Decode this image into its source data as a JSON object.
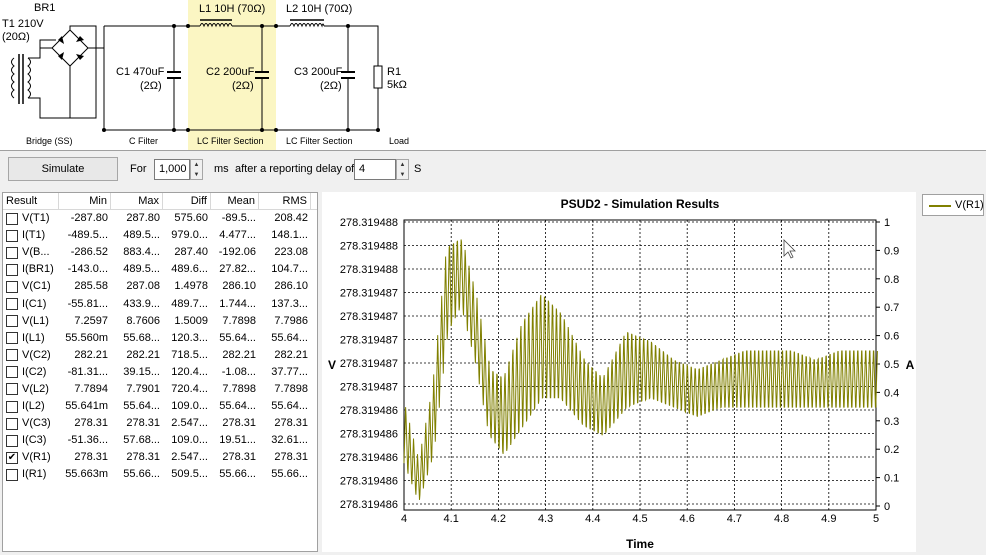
{
  "schematic": {
    "transformer": {
      "name": "T1 210V",
      "res": "(20Ω)"
    },
    "bridge": {
      "name": "BR1",
      "section": "Bridge (SS)"
    },
    "c1": {
      "name": "C1 470uF",
      "res": "(2Ω)",
      "section": "C Filter"
    },
    "l1": {
      "name": "L1 10H (70Ω)"
    },
    "c2": {
      "name": "C2 200uF",
      "res": "(2Ω)",
      "section": "LC Filter Section"
    },
    "l2": {
      "name": "L2 10H (70Ω)"
    },
    "c3": {
      "name": "C3 200uF",
      "res": "(2Ω)",
      "section": "LC Filter Section"
    },
    "r1": {
      "name": "R1",
      "value": "5kΩ",
      "section": "Load"
    }
  },
  "controls": {
    "simulate_label": "Simulate",
    "for_label": "For",
    "duration_value": "1,000",
    "ms_label": "ms",
    "delay_label": "after a reporting delay of",
    "delay_value": "4",
    "s_label": "S"
  },
  "results": {
    "columns": [
      "Result",
      "Min",
      "Max",
      "Diff",
      "Mean",
      "RMS"
    ],
    "rows": [
      {
        "name": "V(T1)",
        "checked": false,
        "min": "-287.80",
        "max": "287.80",
        "diff": "575.60",
        "mean": "-89.5...",
        "rms": "208.42"
      },
      {
        "name": "I(T1)",
        "checked": false,
        "min": "-489.5...",
        "max": "489.5...",
        "diff": "979.0...",
        "mean": "4.477...",
        "rms": "148.1..."
      },
      {
        "name": "V(B...",
        "checked": false,
        "min": "-286.52",
        "max": "883.4...",
        "diff": "287.40",
        "mean": "-192.06",
        "rms": "223.08"
      },
      {
        "name": "I(BR1)",
        "checked": false,
        "min": "-143.0...",
        "max": "489.5...",
        "diff": "489.6...",
        "mean": "27.82...",
        "rms": "104.7..."
      },
      {
        "name": "V(C1)",
        "checked": false,
        "min": "285.58",
        "max": "287.08",
        "diff": "1.4978",
        "mean": "286.10",
        "rms": "286.10"
      },
      {
        "name": "I(C1)",
        "checked": false,
        "min": "-55.81...",
        "max": "433.9...",
        "diff": "489.7...",
        "mean": "1.744...",
        "rms": "137.3..."
      },
      {
        "name": "V(L1)",
        "checked": false,
        "min": "7.2597",
        "max": "8.7606",
        "diff": "1.5009",
        "mean": "7.7898",
        "rms": "7.7986"
      },
      {
        "name": "I(L1)",
        "checked": false,
        "min": "55.560m",
        "max": "55.68...",
        "diff": "120.3...",
        "mean": "55.64...",
        "rms": "55.64..."
      },
      {
        "name": "V(C2)",
        "checked": false,
        "min": "282.21",
        "max": "282.21",
        "diff": "718.5...",
        "mean": "282.21",
        "rms": "282.21"
      },
      {
        "name": "I(C2)",
        "checked": false,
        "min": "-81.31...",
        "max": "39.15...",
        "diff": "120.4...",
        "mean": "-1.08...",
        "rms": "37.77..."
      },
      {
        "name": "V(L2)",
        "checked": false,
        "min": "7.7894",
        "max": "7.7901",
        "diff": "720.4...",
        "mean": "7.7898",
        "rms": "7.7898"
      },
      {
        "name": "I(L2)",
        "checked": false,
        "min": "55.641m",
        "max": "55.64...",
        "diff": "109.0...",
        "mean": "55.64...",
        "rms": "55.64..."
      },
      {
        "name": "V(C3)",
        "checked": false,
        "min": "278.31",
        "max": "278.31",
        "diff": "2.547...",
        "mean": "278.31",
        "rms": "278.31"
      },
      {
        "name": "I(C3)",
        "checked": false,
        "min": "-51.36...",
        "max": "57.68...",
        "diff": "109.0...",
        "mean": "19.51...",
        "rms": "32.61..."
      },
      {
        "name": "V(R1)",
        "checked": true,
        "min": "278.31",
        "max": "278.31",
        "diff": "2.547...",
        "mean": "278.31",
        "rms": "278.31"
      },
      {
        "name": "I(R1)",
        "checked": false,
        "min": "55.663m",
        "max": "55.66...",
        "diff": "509.5...",
        "mean": "55.66...",
        "rms": "55.66..."
      }
    ]
  },
  "chart_data": {
    "type": "line",
    "title": "PSUD2 - Simulation Results",
    "xlabel": "Time",
    "ylabel": "V",
    "y2label": "A",
    "xlim": [
      4,
      5
    ],
    "x_ticks": [
      "4",
      "4.1",
      "4.2",
      "4.3",
      "4.4",
      "4.5",
      "4.6",
      "4.7",
      "4.8",
      "4.9",
      "5"
    ],
    "y_ticks": [
      "278.319488",
      "278.319488",
      "278.319488",
      "278.319487",
      "278.319487",
      "278.319487",
      "278.319487",
      "278.319487",
      "278.319486",
      "278.319486",
      "278.319486",
      "278.319486",
      "278.319486"
    ],
    "y2_ticks": [
      "1",
      "0.9",
      "0.8",
      "0.7",
      "0.6",
      "0.5",
      "0.4",
      "0.3",
      "0.2",
      "0.1",
      "0"
    ],
    "grid": true,
    "legend_position": "right",
    "series": [
      {
        "name": "V(R1)",
        "color": "#808000",
        "envelope": [
          {
            "x": 4.0,
            "min": 278.3194862,
            "max": 278.3194868
          },
          {
            "x": 4.03,
            "min": 278.3194858,
            "max": 278.3194862
          },
          {
            "x": 4.06,
            "min": 278.3194863,
            "max": 278.319487
          },
          {
            "x": 4.09,
            "min": 278.3194876,
            "max": 278.3194885
          },
          {
            "x": 4.12,
            "min": 278.3194879,
            "max": 278.3194886
          },
          {
            "x": 4.15,
            "min": 278.3194873,
            "max": 278.319488
          },
          {
            "x": 4.18,
            "min": 278.3194865,
            "max": 278.3194872
          },
          {
            "x": 4.21,
            "min": 278.3194863,
            "max": 278.3194871
          },
          {
            "x": 4.25,
            "min": 278.3194866,
            "max": 278.3194877
          },
          {
            "x": 4.29,
            "min": 278.3194869,
            "max": 278.319488
          },
          {
            "x": 4.33,
            "min": 278.3194869,
            "max": 278.3194878
          },
          {
            "x": 4.38,
            "min": 278.3194866,
            "max": 278.3194873
          },
          {
            "x": 4.42,
            "min": 278.3194865,
            "max": 278.3194871
          },
          {
            "x": 4.47,
            "min": 278.3194868,
            "max": 278.3194876
          },
          {
            "x": 4.52,
            "min": 278.3194869,
            "max": 278.3194875
          },
          {
            "x": 4.57,
            "min": 278.3194868,
            "max": 278.3194873
          },
          {
            "x": 4.62,
            "min": 278.3194867,
            "max": 278.3194872
          },
          {
            "x": 4.67,
            "min": 278.3194868,
            "max": 278.3194873
          },
          {
            "x": 4.72,
            "min": 278.3194868,
            "max": 278.3194874
          },
          {
            "x": 4.77,
            "min": 278.3194868,
            "max": 278.3194874
          },
          {
            "x": 4.82,
            "min": 278.3194868,
            "max": 278.3194874
          },
          {
            "x": 4.87,
            "min": 278.3194868,
            "max": 278.3194873
          },
          {
            "x": 4.92,
            "min": 278.3194868,
            "max": 278.3194874
          },
          {
            "x": 4.97,
            "min": 278.3194868,
            "max": 278.3194874
          },
          {
            "x": 5.0,
            "min": 278.3194868,
            "max": 278.3194874
          }
        ]
      }
    ]
  }
}
